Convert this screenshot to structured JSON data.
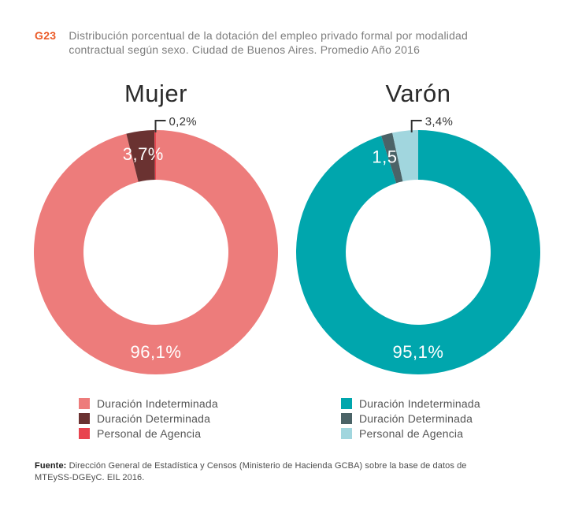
{
  "header": {
    "tag": "G23",
    "title_line1": "Distribución porcentual de la dotación del empleo privado formal por modalidad",
    "title_line2": "contractual según sexo. Ciudad de Buenos Aires. Promedio Año 2016"
  },
  "colors": {
    "accent_orange": "#EB5B28",
    "callout_line": "#333333"
  },
  "chart_data": [
    {
      "type": "pie",
      "title": "Mujer",
      "legend_position": "bottom",
      "slices": [
        {
          "label": "Duración Indeterminada",
          "value": 96.1,
          "display_value": "96,1%",
          "color": "#ED7C7B",
          "label_style": "inside"
        },
        {
          "label": "Duración  Determinada",
          "value": 3.7,
          "display_value": "3,7%",
          "color": "#6A3231",
          "label_style": "inside"
        },
        {
          "label": "Personal de Agencia",
          "value": 0.2,
          "display_value": "0,2%",
          "color": "#E8444F",
          "label_style": "callout"
        }
      ]
    },
    {
      "type": "pie",
      "title": "Varón",
      "legend_position": "bottom",
      "slices": [
        {
          "label": "Duración Indeterminada",
          "value": 95.1,
          "display_value": "95,1%",
          "color": "#00A6AD",
          "label_style": "inside"
        },
        {
          "label": "Duración  Determinada",
          "value": 1.5,
          "display_value": "1,5%",
          "color": "#4B6367",
          "label_style": "inside"
        },
        {
          "label": "Personal de Agencia",
          "value": 3.4,
          "display_value": "3,4%",
          "color": "#A1D6DE",
          "label_style": "callout"
        }
      ]
    }
  ],
  "footer": {
    "source_label": "Fuente:",
    "source_text": "Dirección General de Estadística y Censos (Ministerio de Hacienda GCBA) sobre la base de datos de MTEySS-DGEyC. EIL 2016."
  }
}
